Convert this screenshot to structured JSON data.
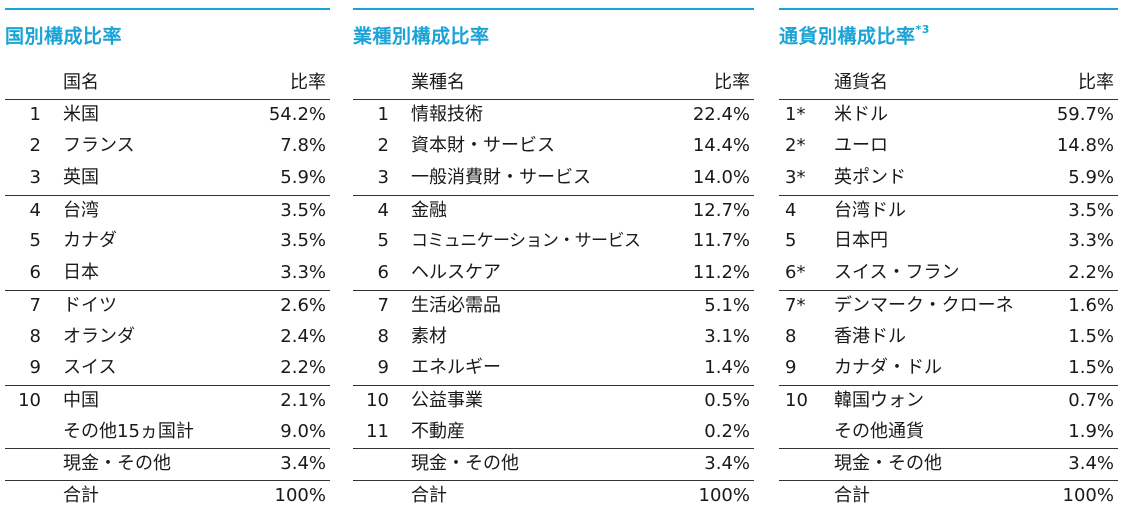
{
  "panels": [
    {
      "title": "国別構成比率",
      "title_note": "",
      "header": {
        "name": "国名",
        "ratio": "比率"
      },
      "rows": [
        {
          "rank": "1",
          "name": "米国",
          "ratio": "54.2%"
        },
        {
          "rank": "2",
          "name": "フランス",
          "ratio": "7.8%"
        },
        {
          "rank": "3",
          "name": "英国",
          "ratio": "5.9%"
        },
        {
          "rank": "4",
          "name": "台湾",
          "ratio": "3.5%"
        },
        {
          "rank": "5",
          "name": "カナダ",
          "ratio": "3.5%"
        },
        {
          "rank": "6",
          "name": "日本",
          "ratio": "3.3%"
        },
        {
          "rank": "7",
          "name": "ドイツ",
          "ratio": "2.6%"
        },
        {
          "rank": "8",
          "name": "オランダ",
          "ratio": "2.4%"
        },
        {
          "rank": "9",
          "name": "スイス",
          "ratio": "2.2%"
        },
        {
          "rank": "10",
          "name": "中国",
          "ratio": "2.1%"
        },
        {
          "rank": "",
          "name": "その他15ヵ国計",
          "ratio": "9.0%"
        },
        {
          "rank": "",
          "name": "現金・その他",
          "ratio": "3.4%"
        },
        {
          "rank": "",
          "name": "合計",
          "ratio": "100%"
        }
      ]
    },
    {
      "title": "業種別構成比率",
      "title_note": "",
      "header": {
        "name": "業種名",
        "ratio": "比率"
      },
      "rows": [
        {
          "rank": "1",
          "name": "情報技術",
          "ratio": "22.4%"
        },
        {
          "rank": "2",
          "name": "資本財・サービス",
          "ratio": "14.4%"
        },
        {
          "rank": "3",
          "name": "一般消費財・サービス",
          "ratio": "14.0%"
        },
        {
          "rank": "4",
          "name": "金融",
          "ratio": "12.7%"
        },
        {
          "rank": "5",
          "name": "コミュニケーション・サービス",
          "ratio": "11.7%"
        },
        {
          "rank": "6",
          "name": "ヘルスケア",
          "ratio": "11.2%"
        },
        {
          "rank": "7",
          "name": "生活必需品",
          "ratio": "5.1%"
        },
        {
          "rank": "8",
          "name": "素材",
          "ratio": "3.1%"
        },
        {
          "rank": "9",
          "name": "エネルギー",
          "ratio": "1.4%"
        },
        {
          "rank": "10",
          "name": "公益事業",
          "ratio": "0.5%"
        },
        {
          "rank": "11",
          "name": "不動産",
          "ratio": "0.2%"
        },
        {
          "rank": "",
          "name": "現金・その他",
          "ratio": "3.4%"
        },
        {
          "rank": "",
          "name": "合計",
          "ratio": "100%"
        }
      ]
    },
    {
      "title": "通貨別構成比率",
      "title_note": "*3",
      "header": {
        "name": "通貨名",
        "ratio": "比率"
      },
      "rows": [
        {
          "rank": "1*",
          "name": "米ドル",
          "ratio": "59.7%"
        },
        {
          "rank": "2*",
          "name": "ユーロ",
          "ratio": "14.8%"
        },
        {
          "rank": "3*",
          "name": "英ポンド",
          "ratio": "5.9%"
        },
        {
          "rank": "4",
          "name": "台湾ドル",
          "ratio": "3.5%"
        },
        {
          "rank": "5",
          "name": "日本円",
          "ratio": "3.3%"
        },
        {
          "rank": "6*",
          "name": "スイス・フラン",
          "ratio": "2.2%"
        },
        {
          "rank": "7*",
          "name": "デンマーク・クローネ",
          "ratio": "1.6%"
        },
        {
          "rank": "8",
          "name": "香港ドル",
          "ratio": "1.5%"
        },
        {
          "rank": "9",
          "name": "カナダ・ドル",
          "ratio": "1.5%"
        },
        {
          "rank": "10",
          "name": "韓国ウォン",
          "ratio": "0.7%"
        },
        {
          "rank": "",
          "name": "その他通貨",
          "ratio": "1.9%"
        },
        {
          "rank": "",
          "name": "現金・その他",
          "ratio": "3.4%"
        },
        {
          "rank": "",
          "name": "合計",
          "ratio": "100%"
        }
      ]
    }
  ]
}
